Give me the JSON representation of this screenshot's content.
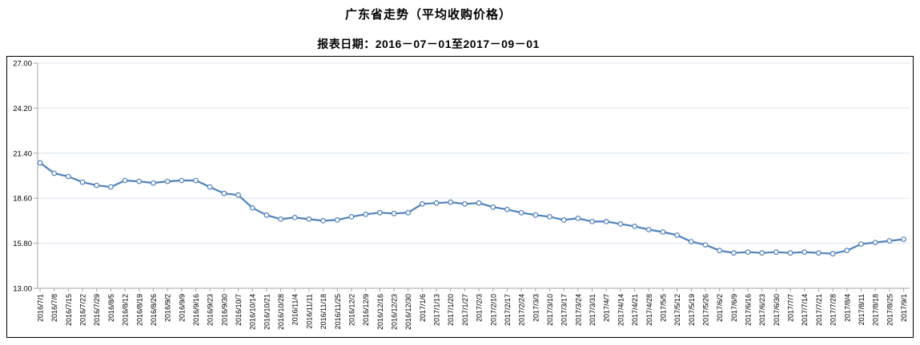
{
  "header": {
    "title": "广东省走势（平均收购价格）",
    "subtitle": "报表日期：2016－07－01至2017－09－01"
  },
  "chart_data": {
    "type": "line",
    "title": "广东省走势（平均收购价格）",
    "subtitle": "报表日期：2016－07－01至2017－09－01",
    "xlabel": "",
    "ylabel": "",
    "ylim": [
      13.0,
      27.0
    ],
    "yticks": [
      "27.00",
      "24.20",
      "21.40",
      "18.60",
      "15.80",
      "13.00"
    ],
    "grid": true,
    "legend": false,
    "x": [
      "2016/7/1",
      "2016/7/8",
      "2016/7/15",
      "2016/7/22",
      "2016/7/29",
      "2016/8/5",
      "2016/8/12",
      "2016/8/19",
      "2016/8/26",
      "2016/9/2",
      "2016/9/9",
      "2016/9/16",
      "2016/9/23",
      "2016/9/30",
      "2016/10/7",
      "2016/10/14",
      "2016/10/21",
      "2016/10/28",
      "2016/11/4",
      "2016/11/11",
      "2016/11/18",
      "2016/11/25",
      "2016/12/2",
      "2016/12/9",
      "2016/12/16",
      "2016/12/23",
      "2016/12/30",
      "2017/1/6",
      "2017/1/13",
      "2017/1/20",
      "2017/1/27",
      "2017/2/3",
      "2017/2/10",
      "2017/2/17",
      "2017/2/24",
      "2017/3/3",
      "2017/3/10",
      "2017/3/17",
      "2017/3/24",
      "2017/3/31",
      "2017/4/7",
      "2017/4/14",
      "2017/4/21",
      "2017/4/28",
      "2017/5/5",
      "2017/5/12",
      "2017/5/19",
      "2017/5/26",
      "2017/6/2",
      "2017/6/9",
      "2017/6/16",
      "2017/6/23",
      "2017/6/30",
      "2017/7/7",
      "2017/7/14",
      "2017/7/21",
      "2017/7/28",
      "2017/8/4",
      "2017/8/11",
      "2017/8/18",
      "2017/8/25",
      "2017/9/1"
    ],
    "values": [
      20.8,
      20.15,
      19.95,
      19.6,
      19.4,
      19.3,
      19.7,
      19.65,
      19.55,
      19.65,
      19.7,
      19.7,
      19.3,
      18.9,
      18.8,
      18.0,
      17.55,
      17.3,
      17.4,
      17.3,
      17.2,
      17.25,
      17.45,
      17.6,
      17.7,
      17.65,
      17.7,
      18.25,
      18.3,
      18.35,
      18.25,
      18.3,
      18.05,
      17.9,
      17.7,
      17.55,
      17.45,
      17.25,
      17.35,
      17.15,
      17.15,
      17.0,
      16.85,
      16.65,
      16.5,
      16.3,
      15.9,
      15.7,
      15.35,
      15.2,
      15.25,
      15.2,
      15.25,
      15.2,
      15.25,
      15.2,
      15.15,
      15.35,
      15.75,
      15.85,
      15.95,
      16.05
    ],
    "colors": {
      "line": "#4f81bd",
      "marker_fill": "#ffffff",
      "gridline": "#dce6f1",
      "axis": "#a6a6a6",
      "frame_border": "#000000",
      "text": "#000000"
    }
  }
}
